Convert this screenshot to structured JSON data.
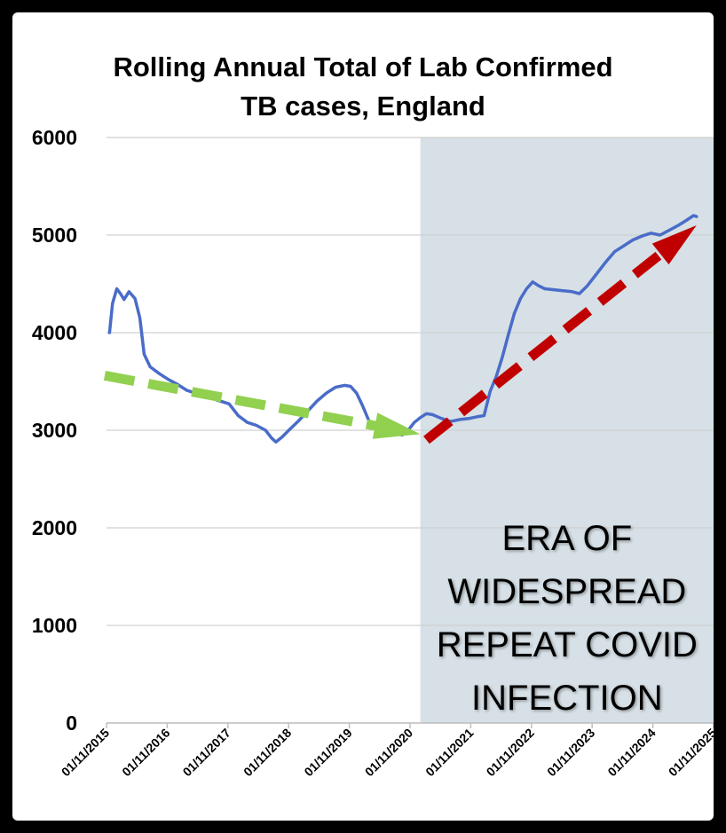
{
  "chart_data": {
    "type": "line",
    "title": "Rolling Annual Total of Lab Confirmed TB cases, England",
    "title_lines": [
      "Rolling Annual Total of Lab Confirmed",
      "TB cases, England"
    ],
    "xlabel": "",
    "ylabel": "",
    "ylim": [
      0,
      6000
    ],
    "yticks": [
      0,
      1000,
      2000,
      3000,
      4000,
      5000,
      6000
    ],
    "xlim": [
      2015.83,
      2025.83
    ],
    "xtick_values": [
      2015.83,
      2016.83,
      2017.83,
      2018.83,
      2019.83,
      2020.83,
      2021.83,
      2022.83,
      2023.83,
      2024.83,
      2025.83
    ],
    "xtick_labels": [
      "01/11/2015",
      "01/11/2016",
      "01/11/2017",
      "01/11/2018",
      "01/11/2019",
      "01/11/2020",
      "01/11/2021",
      "01/11/2022",
      "01/11/2023",
      "01/11/2024",
      "01/11/2025"
    ],
    "grid": true,
    "series": [
      {
        "name": "Rolling annual total",
        "color": "#4a6cc8",
        "points": [
          [
            2015.88,
            4000
          ],
          [
            2015.93,
            4300
          ],
          [
            2016.0,
            4450
          ],
          [
            2016.06,
            4400
          ],
          [
            2016.12,
            4340
          ],
          [
            2016.2,
            4420
          ],
          [
            2016.3,
            4350
          ],
          [
            2016.38,
            4150
          ],
          [
            2016.45,
            3780
          ],
          [
            2016.55,
            3650
          ],
          [
            2016.7,
            3580
          ],
          [
            2016.85,
            3520
          ],
          [
            2017.0,
            3470
          ],
          [
            2017.15,
            3410
          ],
          [
            2017.3,
            3380
          ],
          [
            2017.5,
            3340
          ],
          [
            2017.65,
            3310
          ],
          [
            2017.85,
            3270
          ],
          [
            2018.0,
            3150
          ],
          [
            2018.15,
            3080
          ],
          [
            2018.3,
            3050
          ],
          [
            2018.45,
            3000
          ],
          [
            2018.55,
            2920
          ],
          [
            2018.62,
            2880
          ],
          [
            2018.72,
            2930
          ],
          [
            2018.85,
            3010
          ],
          [
            2019.0,
            3100
          ],
          [
            2019.15,
            3200
          ],
          [
            2019.3,
            3300
          ],
          [
            2019.45,
            3380
          ],
          [
            2019.6,
            3440
          ],
          [
            2019.75,
            3460
          ],
          [
            2019.85,
            3450
          ],
          [
            2019.95,
            3380
          ],
          [
            2020.05,
            3250
          ],
          [
            2020.15,
            3100
          ],
          [
            2020.3,
            3030
          ],
          [
            2020.5,
            3000
          ],
          [
            2020.6,
            2970
          ],
          [
            2020.7,
            2950
          ],
          [
            2020.8,
            3000
          ],
          [
            2020.9,
            3080
          ],
          [
            2021.0,
            3130
          ],
          [
            2021.1,
            3170
          ],
          [
            2021.2,
            3160
          ],
          [
            2021.35,
            3120
          ],
          [
            2021.5,
            3090
          ],
          [
            2021.65,
            3110
          ],
          [
            2021.8,
            3120
          ],
          [
            2021.95,
            3140
          ],
          [
            2022.05,
            3150
          ],
          [
            2022.15,
            3400
          ],
          [
            2022.25,
            3550
          ],
          [
            2022.35,
            3750
          ],
          [
            2022.45,
            3980
          ],
          [
            2022.55,
            4200
          ],
          [
            2022.65,
            4350
          ],
          [
            2022.75,
            4450
          ],
          [
            2022.85,
            4520
          ],
          [
            2022.95,
            4480
          ],
          [
            2023.05,
            4450
          ],
          [
            2023.2,
            4440
          ],
          [
            2023.35,
            4430
          ],
          [
            2023.5,
            4420
          ],
          [
            2023.62,
            4400
          ],
          [
            2023.75,
            4480
          ],
          [
            2023.9,
            4600
          ],
          [
            2024.05,
            4720
          ],
          [
            2024.2,
            4830
          ],
          [
            2024.35,
            4890
          ],
          [
            2024.5,
            4950
          ],
          [
            2024.65,
            4990
          ],
          [
            2024.8,
            5020
          ],
          [
            2024.95,
            5000
          ],
          [
            2025.1,
            5050
          ],
          [
            2025.25,
            5100
          ],
          [
            2025.38,
            5150
          ],
          [
            2025.5,
            5200
          ],
          [
            2025.55,
            5190
          ]
        ]
      }
    ],
    "trend_arrows": [
      {
        "name": "pre-2021 downward trend",
        "color": "#92d050",
        "from": [
          2015.8,
          3560
        ],
        "to": [
          2021.0,
          2960
        ]
      },
      {
        "name": "post-2021 upward trend",
        "color": "#c00000",
        "from": [
          2021.1,
          2900
        ],
        "to": [
          2025.55,
          5100
        ]
      }
    ],
    "shaded_region": {
      "x_start": 2021.0,
      "x_end": 2025.83,
      "color": "#d6e0e6"
    },
    "annotation": {
      "text": "ERA OF WIDESPREAD REPEAT COVID INFECTION",
      "lines": [
        "ERA OF",
        "WIDESPREAD",
        "REPEAT COVID",
        "INFECTION"
      ]
    }
  }
}
